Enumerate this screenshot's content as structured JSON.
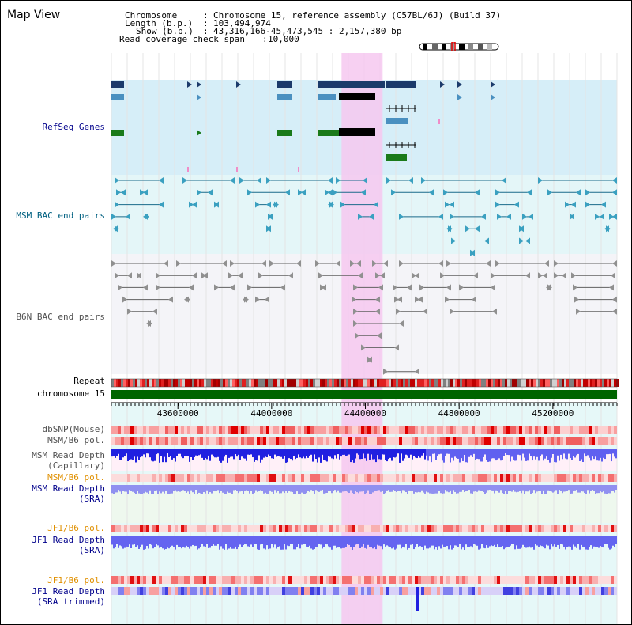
{
  "title": "Map View",
  "header": {
    "chromosome_key": "Chromosome",
    "chromosome_val": "Chromosome 15, reference assembly (C57BL/6J) (Build 37)",
    "length_key": "Length (b.p.)",
    "length_val": "103,494,974",
    "show_key": "Show (b.p.)",
    "show_val": "43,316,166-45,473,545 : 2,157,380 bp",
    "coverage_key": "Read coverage check span",
    "coverage_val": "10,000"
  },
  "tracks": {
    "refseq": "RefSeq Genes",
    "msm_bac": "MSM BAC end pairs",
    "b6n_bac": "B6N BAC end pairs",
    "repeat": "Repeat",
    "chromosome": "chromosome 15",
    "dbsnp": "dbSNP(Mouse)",
    "msm_b6_pol": "MSM/B6 pol.",
    "msm_depth_cap_1": "MSM Read Depth",
    "msm_depth_cap_2": "(Capillary)",
    "msm_b6_pol_sra": "MSM/B6 pol.",
    "msm_depth_sra_1": "MSM Read Depth",
    "msm_depth_sra_2": "(SRA)",
    "jf1_b6_pol": "JF1/B6 pol.",
    "jf1_depth_sra_1": "JF1 Read Depth",
    "jf1_depth_sra_2": "(SRA)",
    "jf1_b6_pol_trim": "JF1/B6 pol.",
    "jf1_depth_trim_1": "JF1 Read Depth",
    "jf1_depth_trim_2": "(SRA trimmed)"
  },
  "axis": {
    "ticks": [
      "43600000",
      "44000000",
      "44400000",
      "44800000",
      "45200000"
    ],
    "tick_values": [
      43600000,
      44000000,
      44400000,
      44800000,
      45200000
    ],
    "range": [
      43316166,
      45473545
    ]
  },
  "highlight_range": [
    44300000,
    44460000
  ],
  "colors": {
    "refseq_bg": "#d6eef8",
    "msm_bac_bg": "#e4f6f8",
    "b6n_bac_bg": "#f4f4f8",
    "highlight": "#f6c8f0",
    "label_navy": "#00008b",
    "label_teal": "#006080",
    "label_gray": "#505050",
    "label_orange": "#e09000",
    "chromosome_green": "#006400",
    "depth_blue": "#2020e0"
  }
}
